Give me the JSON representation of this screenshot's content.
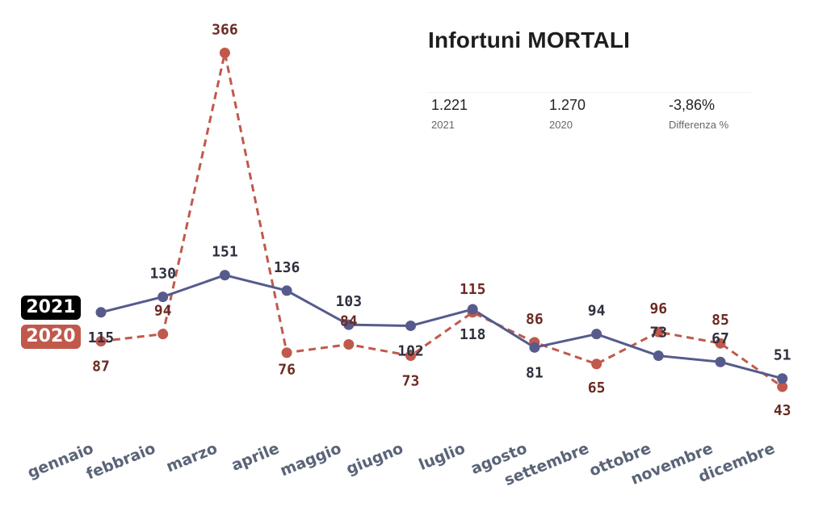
{
  "title": "Infortuni MORTALI",
  "kpis": [
    {
      "value": "1.221",
      "label": "2021"
    },
    {
      "value": "1.270",
      "label": "2020"
    },
    {
      "value": "-3,86%",
      "label": "Differenza %"
    }
  ],
  "legend": {
    "label_2021": "2021",
    "label_2020": "2020"
  },
  "colors": {
    "series_2021": "#565b8c",
    "series_2020": "#c0594c",
    "badge_2021": "#000000",
    "badge_2020": "#c0594c",
    "label_2020": "#6b2b22",
    "label_2021": "#2e3040",
    "axis_text": "#5a6477"
  },
  "chart_data": {
    "type": "line",
    "categories": [
      "gennaio",
      "febbraio",
      "marzo",
      "aprile",
      "maggio",
      "giugno",
      "luglio",
      "agosto",
      "settembre",
      "ottobre",
      "novembre",
      "dicembre"
    ],
    "series": [
      {
        "name": "2021",
        "style": "solid",
        "values": [
          115,
          130,
          151,
          136,
          103,
          102,
          118,
          81,
          94,
          73,
          67,
          51
        ]
      },
      {
        "name": "2020",
        "style": "dashed",
        "values": [
          87,
          94,
          366,
          76,
          84,
          73,
          115,
          86,
          65,
          96,
          85,
          43
        ]
      }
    ],
    "title": "Infortuni MORTALI",
    "xlabel": "",
    "ylabel": "",
    "ylim": [
      0,
      380
    ],
    "grid": false
  }
}
